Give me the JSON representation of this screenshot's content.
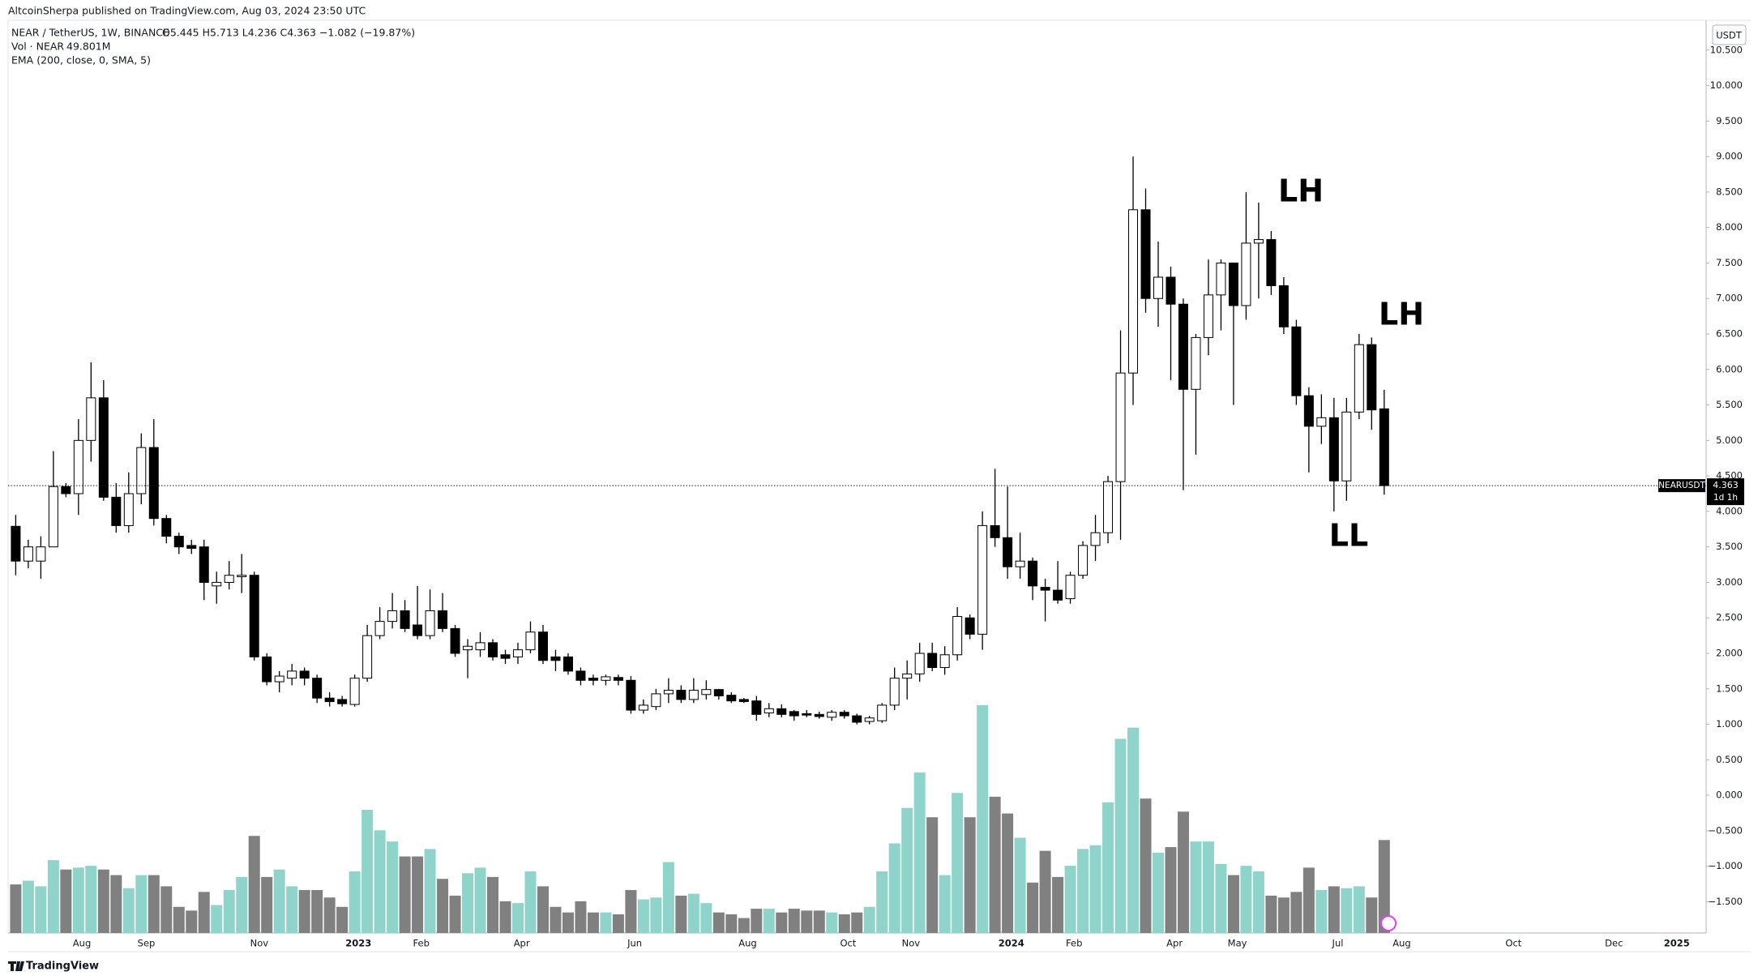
{
  "header": "AltcoinSherpa published on TradingView.com, Aug 03, 2024 23:50 UTC",
  "footer": "TradingView",
  "chart_data": {
    "type": "candlestick",
    "legend": {
      "symbol": "NEAR / TetherUS, 1W, BINANCE",
      "ohlc": "O5.445 H5.713 L4.236 C4.363 −1.082 (−19.87%)",
      "volume_name": "Vol · NEAR",
      "volume_value": "49.801M",
      "indicator": "EMA (200, close, 0, SMA, 5)"
    },
    "axis_unit": "USDT",
    "price_tag": {
      "symbol": "NEARUSDT",
      "countdown": "1d 1h"
    },
    "annotations": [
      "LH",
      "LH",
      "LL"
    ],
    "time_labels": [
      "Aug",
      "Sep",
      "Nov",
      "2023",
      "Feb",
      "Apr",
      "Jun",
      "Aug",
      "Oct",
      "Nov",
      "2024",
      "Feb",
      "Apr",
      "May",
      "Jul",
      "Aug",
      "Oct",
      "Dec",
      "2025"
    ],
    "up_color": "#ffffff",
    "down_color": "#000000",
    "border_color": "#000000",
    "volume_up_color": "#8fd4cb",
    "volume_down_color": "#808080",
    "grid": false,
    "ylim": [
      -1.94,
      10.92
    ],
    "yticks": [
      {
        "value": 10.5,
        "label": "10.500"
      },
      {
        "value": 10,
        "label": "10.000"
      },
      {
        "value": 9.5,
        "label": "9.500"
      },
      {
        "value": 9,
        "label": "9.000"
      },
      {
        "value": 8.5,
        "label": "8.500"
      },
      {
        "value": 8,
        "label": "8.000"
      },
      {
        "value": 7.5,
        "label": "7.500"
      },
      {
        "value": 7,
        "label": "7.000"
      },
      {
        "value": 6.5,
        "label": "6.500"
      },
      {
        "value": 6,
        "label": "6.000"
      },
      {
        "value": 5.5,
        "label": "5.500"
      },
      {
        "value": 5,
        "label": "5.000"
      },
      {
        "value": 4.5,
        "label": "4.500"
      },
      {
        "value": 4,
        "label": "4.000"
      },
      {
        "value": 3.5,
        "label": "3.500"
      },
      {
        "value": 3,
        "label": "3.000"
      },
      {
        "value": 2.5,
        "label": "2.500"
      },
      {
        "value": 2,
        "label": "2.000"
      },
      {
        "value": 1.5,
        "label": "1.500"
      },
      {
        "value": 1,
        "label": "1.000"
      },
      {
        "value": 0.5,
        "label": "0.500"
      },
      {
        "value": 0,
        "label": "0.000"
      },
      {
        "value": -0.5,
        "label": "−0.500"
      },
      {
        "value": -1,
        "label": "−1.000"
      },
      {
        "value": -1.5,
        "label": "−1.500"
      }
    ],
    "open": [
      3.79,
      3.3,
      3.3,
      3.5,
      4.35,
      4.25,
      5.0,
      5.6,
      4.2,
      3.8,
      4.25,
      4.9,
      3.9,
      3.65,
      3.52,
      3.5,
      2.95,
      3.0,
      3.08,
      3.1,
      1.95,
      1.6,
      1.65,
      1.75,
      1.65,
      1.37,
      1.35,
      1.28,
      1.65,
      2.25,
      2.45,
      2.6,
      2.4,
      2.25,
      2.6,
      2.35,
      2.05,
      2.05,
      2.15,
      1.98,
      1.95,
      2.05,
      2.3,
      1.95,
      1.95,
      1.75,
      1.65,
      1.62,
      1.66,
      1.62,
      1.2,
      1.25,
      1.43,
      1.48,
      1.35,
      1.42,
      1.49,
      1.41,
      1.35,
      1.33,
      1.16,
      1.22,
      1.18,
      1.15,
      1.14,
      1.1,
      1.17,
      1.12,
      1.04,
      1.05,
      1.27,
      1.65,
      1.71,
      2.0,
      1.8,
      1.98,
      2.5,
      2.27,
      3.8,
      3.63,
      3.22,
      3.3,
      2.93,
      2.89,
      2.77,
      3.1,
      3.52,
      3.7,
      4.42,
      5.95,
      8.25,
      7.0,
      7.3,
      6.92,
      5.72,
      6.45,
      7.05,
      7.5,
      6.9,
      7.78,
      7.83,
      7.18,
      6.6,
      5.63,
      5.2,
      5.32,
      4.43,
      5.4,
      6.35,
      5.445
    ],
    "high": [
      3.95,
      3.6,
      3.65,
      4.85,
      4.4,
      5.3,
      6.1,
      5.85,
      4.4,
      4.55,
      5.1,
      5.3,
      3.95,
      3.7,
      3.6,
      3.6,
      3.15,
      3.3,
      3.4,
      3.15,
      2.0,
      1.75,
      1.85,
      1.8,
      1.7,
      1.45,
      1.4,
      1.7,
      2.4,
      2.65,
      2.85,
      2.75,
      2.95,
      2.9,
      2.85,
      2.4,
      2.2,
      2.3,
      2.2,
      2.05,
      2.15,
      2.45,
      2.4,
      2.05,
      2.0,
      1.8,
      1.7,
      1.7,
      1.7,
      1.68,
      1.35,
      1.5,
      1.65,
      1.55,
      1.65,
      1.62,
      1.5,
      1.45,
      1.37,
      1.4,
      1.3,
      1.28,
      1.2,
      1.2,
      1.18,
      1.2,
      1.2,
      1.15,
      1.12,
      1.3,
      1.8,
      1.9,
      2.15,
      2.15,
      2.1,
      2.65,
      2.55,
      4.0,
      4.6,
      4.35,
      3.7,
      3.35,
      3.05,
      3.3,
      3.15,
      3.58,
      3.95,
      4.5,
      6.55,
      9.0,
      8.55,
      7.8,
      7.45,
      7.0,
      6.5,
      7.55,
      7.55,
      7.5,
      8.5,
      8.35,
      7.95,
      7.3,
      6.7,
      5.75,
      5.65,
      5.6,
      5.6,
      6.5,
      6.45,
      5.713
    ],
    "low": [
      3.1,
      3.2,
      3.05,
      3.5,
      4.2,
      3.95,
      4.7,
      4.15,
      3.7,
      3.7,
      4.1,
      3.8,
      3.55,
      3.4,
      3.4,
      2.75,
      2.7,
      2.9,
      2.85,
      1.9,
      1.55,
      1.45,
      1.55,
      1.55,
      1.3,
      1.25,
      1.25,
      1.25,
      1.6,
      2.2,
      2.35,
      2.3,
      2.2,
      2.2,
      2.3,
      1.95,
      1.65,
      1.95,
      1.9,
      1.85,
      1.85,
      2.0,
      1.85,
      1.75,
      1.7,
      1.55,
      1.55,
      1.55,
      1.55,
      1.15,
      1.15,
      1.2,
      1.3,
      1.3,
      1.3,
      1.35,
      1.35,
      1.3,
      1.3,
      1.05,
      1.1,
      1.1,
      1.05,
      1.1,
      1.08,
      1.05,
      1.08,
      1.0,
      1.0,
      1.02,
      1.2,
      1.35,
      1.6,
      1.75,
      1.7,
      1.9,
      2.2,
      2.05,
      3.5,
      3.05,
      3.05,
      2.75,
      2.45,
      2.7,
      2.7,
      3.05,
      3.3,
      3.55,
      3.6,
      5.5,
      6.8,
      6.6,
      5.85,
      4.3,
      4.8,
      6.2,
      6.55,
      5.5,
      6.7,
      7.0,
      7.05,
      6.5,
      5.5,
      4.55,
      4.95,
      4.0,
      4.15,
      5.3,
      5.15,
      4.236
    ],
    "close": [
      3.3,
      3.5,
      3.5,
      4.35,
      4.25,
      5.0,
      5.6,
      4.2,
      3.8,
      4.25,
      4.9,
      3.9,
      3.65,
      3.5,
      3.48,
      3.0,
      3.0,
      3.1,
      3.1,
      1.95,
      1.6,
      1.68,
      1.75,
      1.65,
      1.37,
      1.32,
      1.29,
      1.65,
      2.25,
      2.45,
      2.6,
      2.35,
      2.25,
      2.6,
      2.35,
      2.0,
      2.1,
      2.15,
      1.95,
      1.93,
      2.05,
      2.3,
      1.9,
      1.9,
      1.75,
      1.62,
      1.62,
      1.67,
      1.62,
      1.2,
      1.27,
      1.43,
      1.48,
      1.35,
      1.48,
      1.49,
      1.4,
      1.33,
      1.32,
      1.14,
      1.22,
      1.14,
      1.12,
      1.13,
      1.11,
      1.17,
      1.12,
      1.03,
      1.09,
      1.27,
      1.65,
      1.71,
      2.0,
      1.8,
      1.98,
      2.52,
      2.27,
      3.8,
      3.63,
      3.22,
      3.3,
      2.95,
      2.89,
      2.75,
      3.1,
      3.52,
      3.7,
      4.42,
      5.95,
      8.25,
      7.0,
      7.3,
      6.92,
      5.72,
      6.45,
      7.05,
      7.5,
      6.9,
      7.78,
      7.83,
      7.18,
      6.6,
      5.63,
      5.2,
      5.32,
      4.43,
      5.4,
      6.35,
      5.43,
      4.363
    ],
    "volume": [
      26,
      28,
      25,
      39,
      34,
      35,
      36,
      34,
      31,
      24,
      31,
      31,
      25,
      14,
      12,
      22,
      15,
      23,
      30,
      52,
      30,
      34,
      25,
      23,
      23,
      19,
      14,
      33,
      66,
      55,
      49,
      41,
      41,
      45,
      29,
      20,
      32,
      35,
      30,
      17,
      16,
      33,
      25,
      14,
      11,
      17,
      11,
      11,
      10,
      23,
      18,
      19,
      38,
      20,
      21,
      16,
      11,
      10,
      8,
      13,
      13,
      11,
      13,
      12,
      12,
      11,
      10,
      11,
      14,
      33,
      48,
      67,
      86,
      62,
      31,
      75,
      62,
      122,
      73,
      64,
      51,
      27,
      44,
      30,
      36,
      45,
      47,
      70,
      104,
      110,
      72,
      43,
      46,
      65,
      49,
      49,
      37,
      31,
      36,
      33,
      20,
      19,
      22,
      35,
      23,
      25,
      24,
      25,
      19,
      49.801
    ]
  }
}
